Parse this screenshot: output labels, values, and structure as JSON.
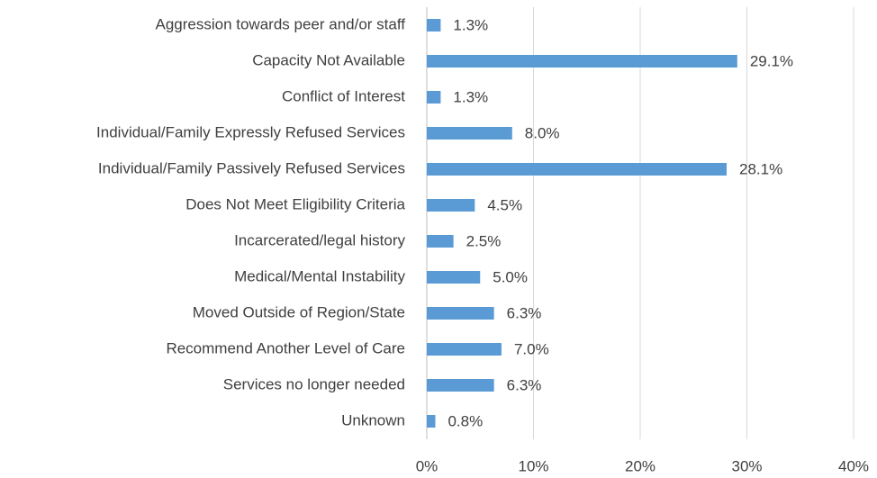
{
  "chart_data": {
    "type": "bar",
    "orientation": "horizontal",
    "categories": [
      "Aggression towards peer and/or staff",
      "Capacity Not Available",
      "Conflict of Interest",
      "Individual/Family Expressly Refused Services",
      "Individual/Family Passively Refused Services",
      "Does Not Meet Eligibility Criteria",
      "Incarcerated/legal history",
      "Medical/Mental Instability",
      "Moved Outside of Region/State",
      "Recommend Another Level of Care",
      "Services no longer needed",
      "Unknown"
    ],
    "values": [
      1.3,
      29.1,
      1.3,
      8.0,
      28.1,
      4.5,
      2.5,
      5.0,
      6.3,
      7.0,
      6.3,
      0.8
    ],
    "value_labels": [
      "1.3%",
      "29.1%",
      "1.3%",
      "8.0%",
      "28.1%",
      "4.5%",
      "2.5%",
      "5.0%",
      "6.3%",
      "7.0%",
      "6.3%",
      "0.8%"
    ],
    "color": "#5b9bd5",
    "xlim": [
      0,
      40
    ],
    "xticks": [
      {
        "value": 0,
        "label": "0%"
      },
      {
        "value": 10,
        "label": "10%"
      },
      {
        "value": 20,
        "label": "20%"
      },
      {
        "value": 30,
        "label": "30%"
      },
      {
        "value": 40,
        "label": "40%"
      }
    ],
    "grid": true
  }
}
